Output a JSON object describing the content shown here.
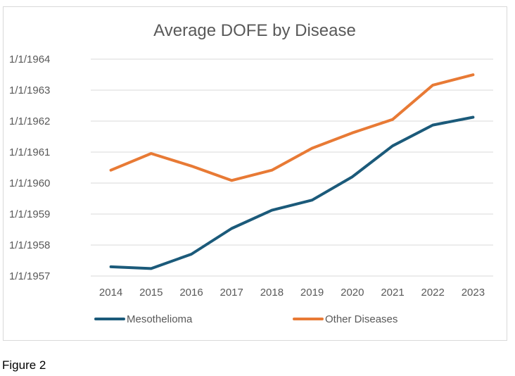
{
  "caption": "Figure 2",
  "chart_data": {
    "type": "line",
    "title": "Average DOFE by Disease",
    "xlabel": "",
    "ylabel": "",
    "categories": [
      "2014",
      "2015",
      "2016",
      "2017",
      "2018",
      "2019",
      "2020",
      "2021",
      "2022",
      "2023"
    ],
    "y_axis": {
      "kind": "date",
      "tick_labels": [
        "1/1/1957",
        "1/1/1958",
        "1/1/1959",
        "1/1/1960",
        "1/1/1961",
        "1/1/1962",
        "1/1/1963",
        "1/1/1964"
      ],
      "ylim": [
        "1957-01-01",
        "1964-01-01"
      ]
    },
    "series": [
      {
        "name": "Mesothelioma",
        "color": "#1b5a7a",
        "values": [
          "1957-04-20",
          "1957-03-30",
          "1957-09-15",
          "1958-07-15",
          "1959-02-15",
          "1959-06-15",
          "1960-03-15",
          "1961-03-15",
          "1961-11-15",
          "1962-02-15"
        ]
      },
      {
        "name": "Other Diseases",
        "color": "#e87a35",
        "values": [
          "1960-06-01",
          "1960-12-15",
          "1960-07-20",
          "1960-02-01",
          "1960-06-01",
          "1961-02-15",
          "1961-08-15",
          "1962-01-20",
          "1963-03-01",
          "1963-07-01"
        ]
      }
    ],
    "grid": "horizontal",
    "legend_position": "bottom"
  }
}
